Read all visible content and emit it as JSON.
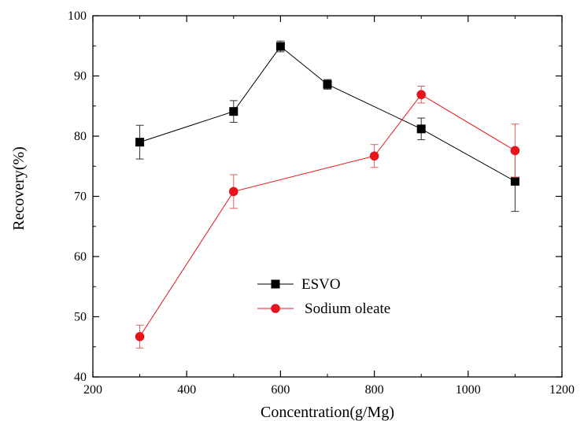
{
  "chart_data": {
    "type": "line",
    "title": "",
    "xlabel": "Concentration(g/Mg)",
    "ylabel": "Recovery(%)",
    "xlim": [
      200,
      1200
    ],
    "ylim": [
      40,
      100
    ],
    "xticks": [
      200,
      400,
      600,
      800,
      1000,
      1200
    ],
    "yticks": [
      40,
      50,
      60,
      70,
      80,
      90,
      100
    ],
    "grid": false,
    "legend_position": "center-left",
    "series": [
      {
        "name": "ESVO",
        "color": "#000000",
        "marker": "square",
        "x": [
          300,
          500,
          600,
          700,
          900,
          1100
        ],
        "y": [
          79.0,
          84.1,
          94.9,
          88.6,
          81.2,
          72.5
        ],
        "err": [
          2.8,
          1.8,
          0.9,
          0.8,
          1.8,
          5.0
        ]
      },
      {
        "name": "Sodium oleate",
        "color": "#e8141b",
        "marker": "circle",
        "x": [
          300,
          500,
          800,
          900,
          1100
        ],
        "y": [
          46.7,
          70.8,
          76.7,
          86.9,
          77.6
        ],
        "err": [
          1.9,
          2.8,
          1.9,
          1.4,
          4.4
        ]
      }
    ]
  }
}
